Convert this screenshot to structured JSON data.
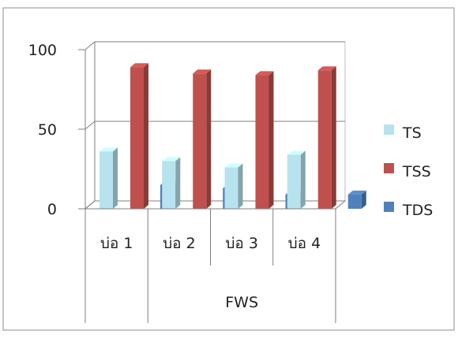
{
  "chart_data": {
    "type": "bar",
    "categories": [
      "บ่อ 1",
      "บ่อ 2",
      "บ่อ 3",
      "บ่อ 4"
    ],
    "group_label": "FWS",
    "series": [
      {
        "name": "TS",
        "values": [
          36,
          30,
          26,
          34
        ],
        "color": "#b7e3ee"
      },
      {
        "name": "TSS",
        "values": [
          89,
          85,
          84,
          87
        ],
        "color": "#c0504d"
      },
      {
        "name": "TDS",
        "values": [
          15,
          13,
          9,
          9
        ],
        "color": "#4f81bd"
      }
    ],
    "y_ticks": [
      "0",
      "50",
      "100"
    ],
    "ylim": [
      0,
      100
    ],
    "grid": true,
    "legend": "right",
    "three_d": true
  }
}
